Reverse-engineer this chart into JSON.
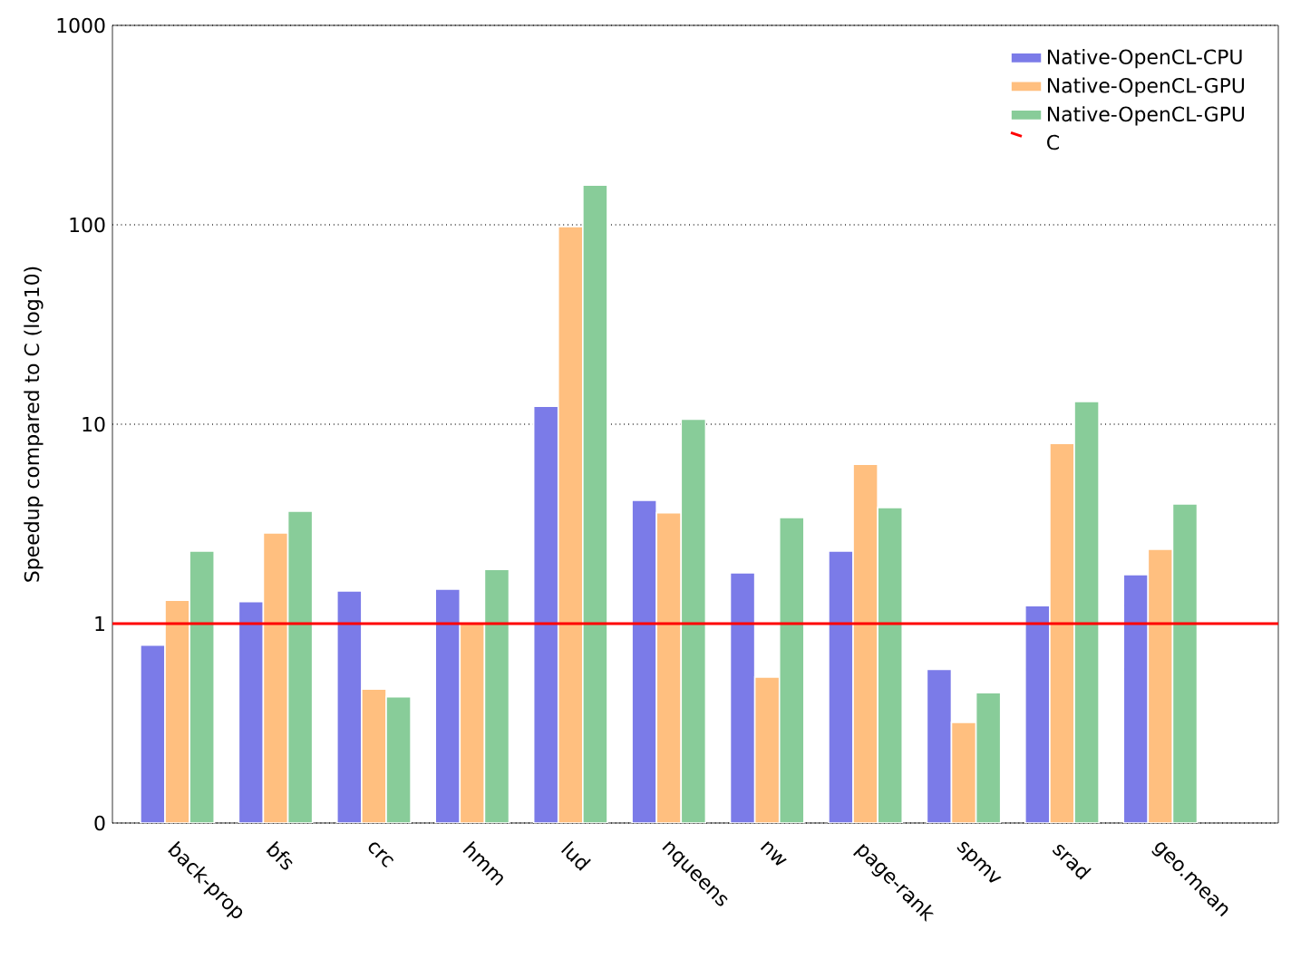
{
  "chart_data": {
    "type": "bar",
    "ylabel": "Speedup compared to C (log10)",
    "categories": [
      "back-prop",
      "bfs",
      "crc",
      "hmm",
      "lud",
      "nqueens",
      "nw",
      "page-rank",
      "spmv",
      "srad",
      "geo.mean"
    ],
    "series": [
      {
        "name": "Native-OpenCL-CPU",
        "color": "#7b7be8",
        "values": [
          0.78,
          1.29,
          1.46,
          1.49,
          12.3,
          4.15,
          1.8,
          2.31,
          0.59,
          1.23,
          1.76
        ]
      },
      {
        "name": "Native-OpenCL-GPU",
        "color": "#ffbf7f",
        "values": [
          1.31,
          2.85,
          0.47,
          1.0,
          98,
          3.6,
          0.54,
          6.3,
          0.32,
          8.0,
          2.36
        ]
      },
      {
        "name": "Native-OpenCL-GPU",
        "color": "#88cc99",
        "values": [
          2.31,
          3.66,
          0.43,
          1.87,
          158,
          10.6,
          3.4,
          3.82,
          0.45,
          13.0,
          3.98
        ]
      }
    ],
    "ref_lines": [
      {
        "axis": "y",
        "value": 1,
        "label": "C",
        "color": "#ff0000"
      }
    ],
    "log": "y",
    "ylim": [
      0.1,
      1000
    ],
    "yticks": [
      {
        "value": 0.1,
        "label": "0"
      },
      1,
      10,
      100,
      1000
    ],
    "grid": "y",
    "legend": "top right"
  }
}
